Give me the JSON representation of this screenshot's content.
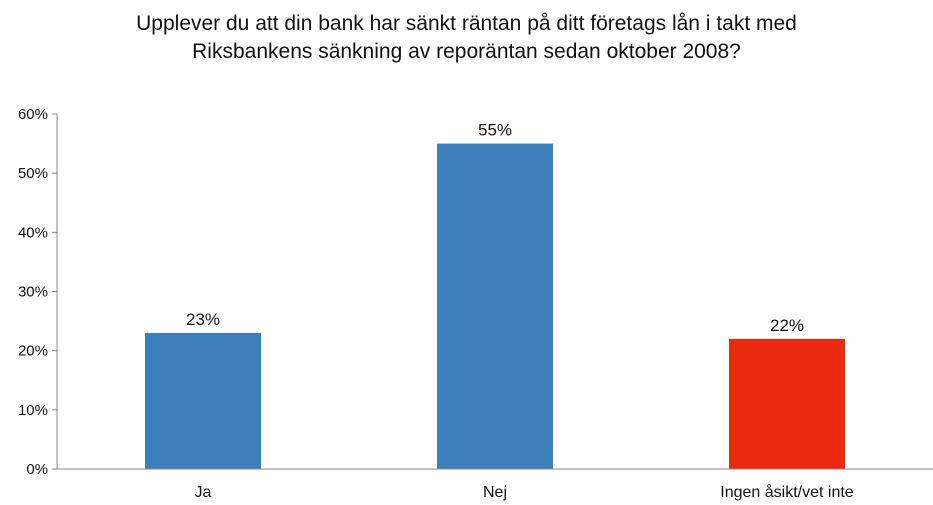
{
  "chart_data": {
    "type": "bar",
    "title": [
      "Upplever du att din bank har sänkt räntan på ditt företags lån i takt med",
      "Riksbankens sänkning av reporäntan sedan oktober 2008?"
    ],
    "categories": [
      "Ja",
      "Nej",
      "Ingen åsikt/vet inte"
    ],
    "values": [
      23,
      55,
      22
    ],
    "value_labels": [
      "23%",
      "55%",
      "22%"
    ],
    "bar_colors": [
      "#3d7fba",
      "#3d7fba",
      "#ea2a10"
    ],
    "ylim": [
      0,
      60
    ],
    "yticks": [
      0,
      10,
      20,
      30,
      40,
      50,
      60
    ],
    "ytick_labels": [
      "0%",
      "10%",
      "20%",
      "30%",
      "40%",
      "50%",
      "60%"
    ],
    "xlabel": "",
    "ylabel": "",
    "grid": false,
    "legend": "none"
  }
}
